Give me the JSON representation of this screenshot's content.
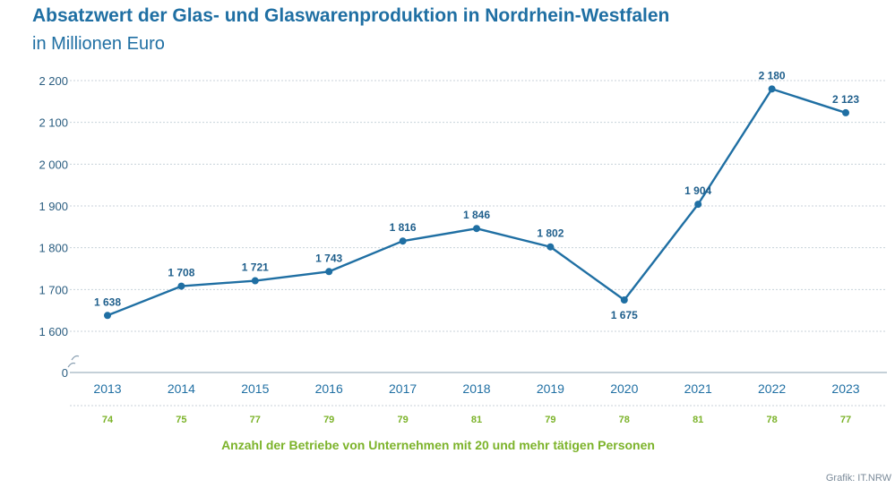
{
  "title": "Absatzwert der Glas- und Glaswarenproduktion in Nordrhein-Westfalen",
  "subtitle": "in Millionen Euro",
  "source": "Grafik: IT.NRW",
  "colors": {
    "line": "#1f6fa3",
    "accent": "#7cb32a",
    "grid": "#c8d2da"
  },
  "chart_data": {
    "type": "line",
    "categories": [
      "2013",
      "2014",
      "2015",
      "2016",
      "2017",
      "2018",
      "2019",
      "2020",
      "2021",
      "2022",
      "2023"
    ],
    "series": [
      {
        "values": [
          1638,
          1708,
          1721,
          1743,
          1816,
          1846,
          1802,
          1675,
          1904,
          2180,
          2123
        ]
      }
    ],
    "data_labels": [
      "1 638",
      "1 708",
      "1 721",
      "1 743",
      "1 816",
      "1 846",
      "1 802",
      "1 675",
      "1 904",
      "2 180",
      "2 123"
    ],
    "yticks": [
      {
        "value": 2200,
        "label": "2 200"
      },
      {
        "value": 2100,
        "label": "2 100"
      },
      {
        "value": 2000,
        "label": "2 000"
      },
      {
        "value": 1900,
        "label": "1 900"
      },
      {
        "value": 1800,
        "label": "1 800"
      },
      {
        "value": 1700,
        "label": "1 700"
      },
      {
        "value": 1600,
        "label": "1 600"
      },
      {
        "value": 0,
        "label": "0"
      }
    ],
    "ylim": [
      1600,
      2200
    ],
    "axis_break": true,
    "grid": true,
    "secondary_row": {
      "label": "Anzahl der Betriebe von Unternehmen mit 20 und mehr tätigen Personen",
      "values": [
        "74",
        "75",
        "77",
        "79",
        "79",
        "81",
        "79",
        "78",
        "81",
        "78",
        "77"
      ]
    }
  }
}
